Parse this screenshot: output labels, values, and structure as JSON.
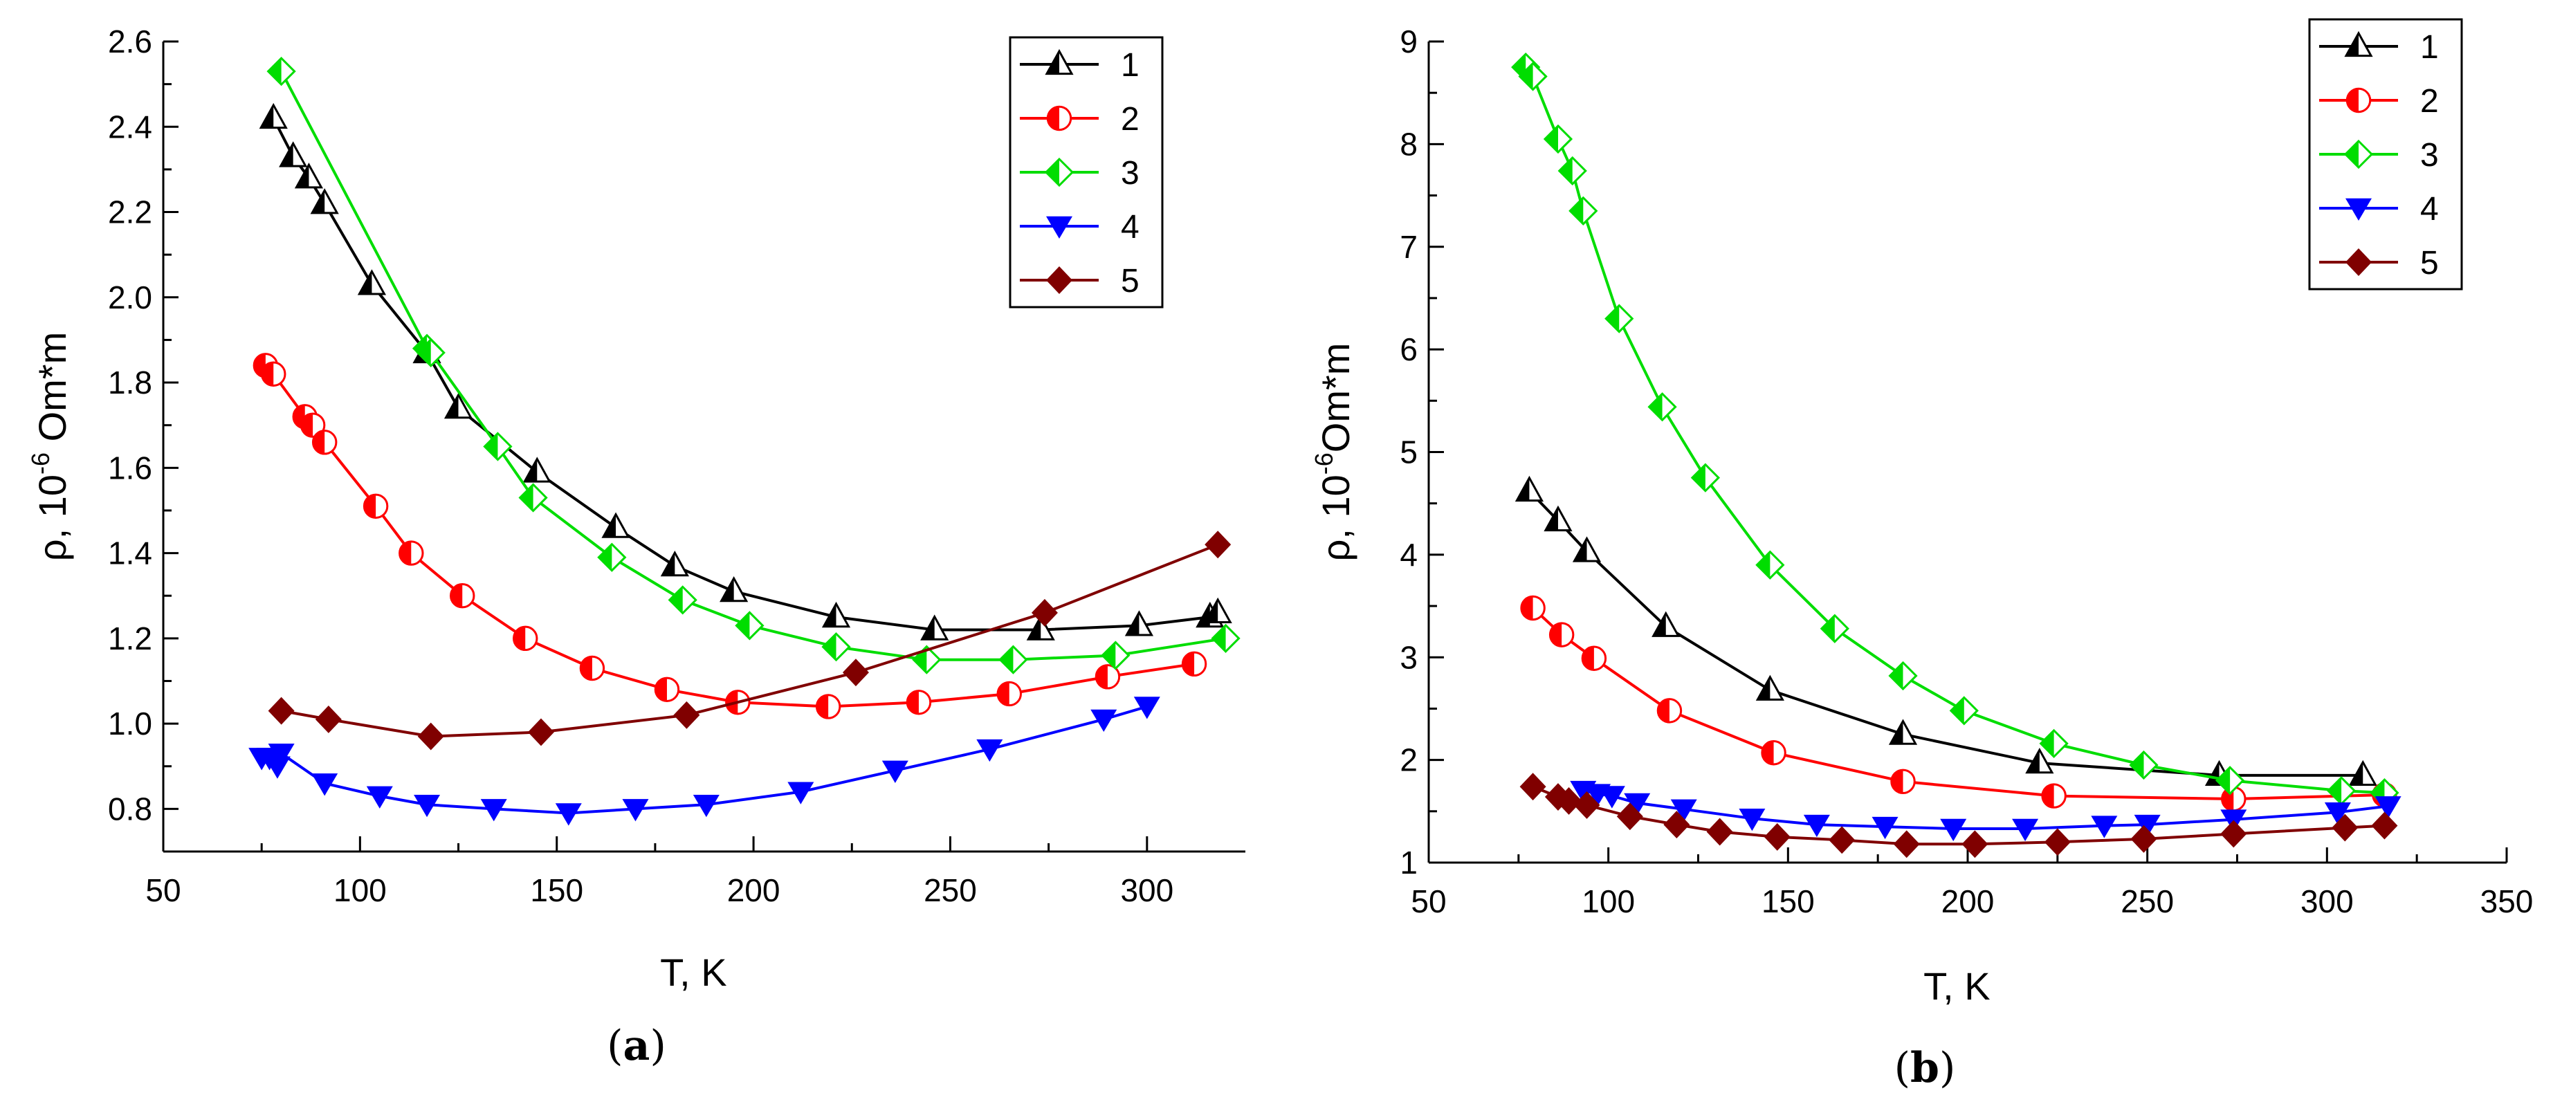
{
  "figure": {
    "panel_labels": [
      {
        "open": "(",
        "letter": "a",
        "close": ")"
      },
      {
        "open": "(",
        "letter": "b",
        "close": ")"
      }
    ]
  },
  "chart_data": [
    {
      "type": "line",
      "panel": "a",
      "xlabel": "T, K",
      "ylabel": {
        "prefix": "ρ, 10",
        "exponent": "-6",
        "suffix": " Om*m"
      },
      "xlim": [
        50,
        325
      ],
      "ylim": [
        0.7,
        2.6
      ],
      "xticks": [
        50,
        100,
        150,
        200,
        250,
        300
      ],
      "yticks": [
        0.8,
        1.0,
        1.2,
        1.4,
        1.6,
        1.8,
        2.0,
        2.2,
        2.4,
        2.6
      ],
      "ytick_labels": [
        "0.8",
        "1.0",
        "1.2",
        "1.4",
        "1.6",
        "1.8",
        "2.0",
        "2.2",
        "2.4",
        "2.6"
      ],
      "legend_position": "top-right",
      "series": [
        {
          "name": "1",
          "color": "#000000",
          "marker": "triangle-up-half",
          "x": [
            78,
            83,
            87,
            91,
            103,
            117,
            125,
            145,
            165,
            180,
            195,
            221,
            246,
            273,
            298,
            316,
            318
          ],
          "y": [
            2.42,
            2.33,
            2.28,
            2.22,
            2.03,
            1.87,
            1.74,
            1.59,
            1.46,
            1.37,
            1.31,
            1.25,
            1.22,
            1.22,
            1.23,
            1.25,
            1.26
          ]
        },
        {
          "name": "2",
          "color": "#ff0000",
          "marker": "circle-half",
          "x": [
            76,
            78,
            86,
            88,
            91,
            104,
            113,
            126,
            142,
            159,
            178,
            196,
            219,
            242,
            265,
            290,
            312
          ],
          "y": [
            1.84,
            1.82,
            1.72,
            1.7,
            1.66,
            1.51,
            1.4,
            1.3,
            1.2,
            1.13,
            1.08,
            1.05,
            1.04,
            1.05,
            1.07,
            1.11,
            1.14
          ]
        },
        {
          "name": "3",
          "color": "#00dd00",
          "marker": "diamond-half",
          "x": [
            80,
            117,
            118,
            135,
            144,
            164,
            182,
            199,
            221,
            244,
            266,
            292,
            320
          ],
          "y": [
            2.53,
            1.88,
            1.87,
            1.65,
            1.53,
            1.39,
            1.29,
            1.23,
            1.18,
            1.15,
            1.15,
            1.16,
            1.2
          ]
        },
        {
          "name": "4",
          "color": "#0000ff",
          "marker": "triangle-down",
          "x": [
            75,
            77,
            79,
            80,
            91,
            105,
            117,
            134,
            153,
            170,
            188,
            212,
            236,
            260,
            289,
            300
          ],
          "y": [
            0.92,
            0.92,
            0.9,
            0.93,
            0.86,
            0.83,
            0.81,
            0.8,
            0.79,
            0.8,
            0.81,
            0.84,
            0.89,
            0.94,
            1.01,
            1.04
          ]
        },
        {
          "name": "5",
          "color": "#800000",
          "marker": "diamond",
          "x": [
            80,
            92,
            118,
            146,
            183,
            226,
            274,
            318
          ],
          "y": [
            1.03,
            1.01,
            0.97,
            0.98,
            1.02,
            1.12,
            1.26,
            1.42
          ]
        }
      ]
    },
    {
      "type": "line",
      "panel": "b",
      "xlabel": "T, K",
      "ylabel": {
        "prefix": "ρ, 10",
        "exponent": "-6",
        "suffix": "Om*m"
      },
      "xlim": [
        50,
        350
      ],
      "ylim": [
        1,
        9
      ],
      "xticks": [
        50,
        100,
        150,
        200,
        250,
        300,
        350
      ],
      "yticks": [
        1,
        2,
        3,
        4,
        5,
        6,
        7,
        8,
        9
      ],
      "ytick_labels": [
        "1",
        "2",
        "3",
        "4",
        "5",
        "6",
        "7",
        "8",
        "9"
      ],
      "legend_position": "top-right",
      "series": [
        {
          "name": "1",
          "color": "#000000",
          "marker": "triangle-up-half",
          "x": [
            78,
            86,
            94,
            116,
            145,
            182,
            220,
            270,
            310
          ],
          "y": [
            4.62,
            4.33,
            4.03,
            3.3,
            2.68,
            2.25,
            1.97,
            1.85,
            1.85
          ]
        },
        {
          "name": "2",
          "color": "#ff0000",
          "marker": "circle-half",
          "x": [
            79,
            87,
            96,
            117,
            146,
            182,
            224,
            274,
            316
          ],
          "y": [
            3.48,
            3.22,
            2.99,
            2.48,
            2.07,
            1.79,
            1.65,
            1.62,
            1.66
          ]
        },
        {
          "name": "3",
          "color": "#00dd00",
          "marker": "diamond-half",
          "x": [
            77,
            79,
            86,
            90,
            93,
            103,
            115,
            127,
            145,
            163,
            182,
            199,
            224,
            249,
            273,
            304,
            316
          ],
          "y": [
            8.75,
            8.66,
            8.05,
            7.74,
            7.35,
            6.3,
            5.44,
            4.75,
            3.9,
            3.28,
            2.82,
            2.48,
            2.16,
            1.95,
            1.8,
            1.7,
            1.68
          ]
        },
        {
          "name": "4",
          "color": "#0000ff",
          "marker": "triangle-down",
          "x": [
            93,
            97,
            101,
            108,
            121,
            140,
            158,
            177,
            196,
            216,
            238,
            250,
            274,
            303,
            317
          ],
          "y": [
            1.7,
            1.67,
            1.65,
            1.58,
            1.52,
            1.43,
            1.37,
            1.35,
            1.33,
            1.33,
            1.36,
            1.37,
            1.42,
            1.49,
            1.55
          ]
        },
        {
          "name": "5",
          "color": "#800000",
          "marker": "diamond",
          "x": [
            79,
            86,
            89,
            94,
            106,
            119,
            131,
            147,
            165,
            183,
            202,
            225,
            249,
            274,
            305,
            316
          ],
          "y": [
            1.74,
            1.64,
            1.6,
            1.56,
            1.45,
            1.37,
            1.3,
            1.25,
            1.22,
            1.18,
            1.18,
            1.2,
            1.23,
            1.28,
            1.34,
            1.36
          ]
        }
      ]
    }
  ]
}
